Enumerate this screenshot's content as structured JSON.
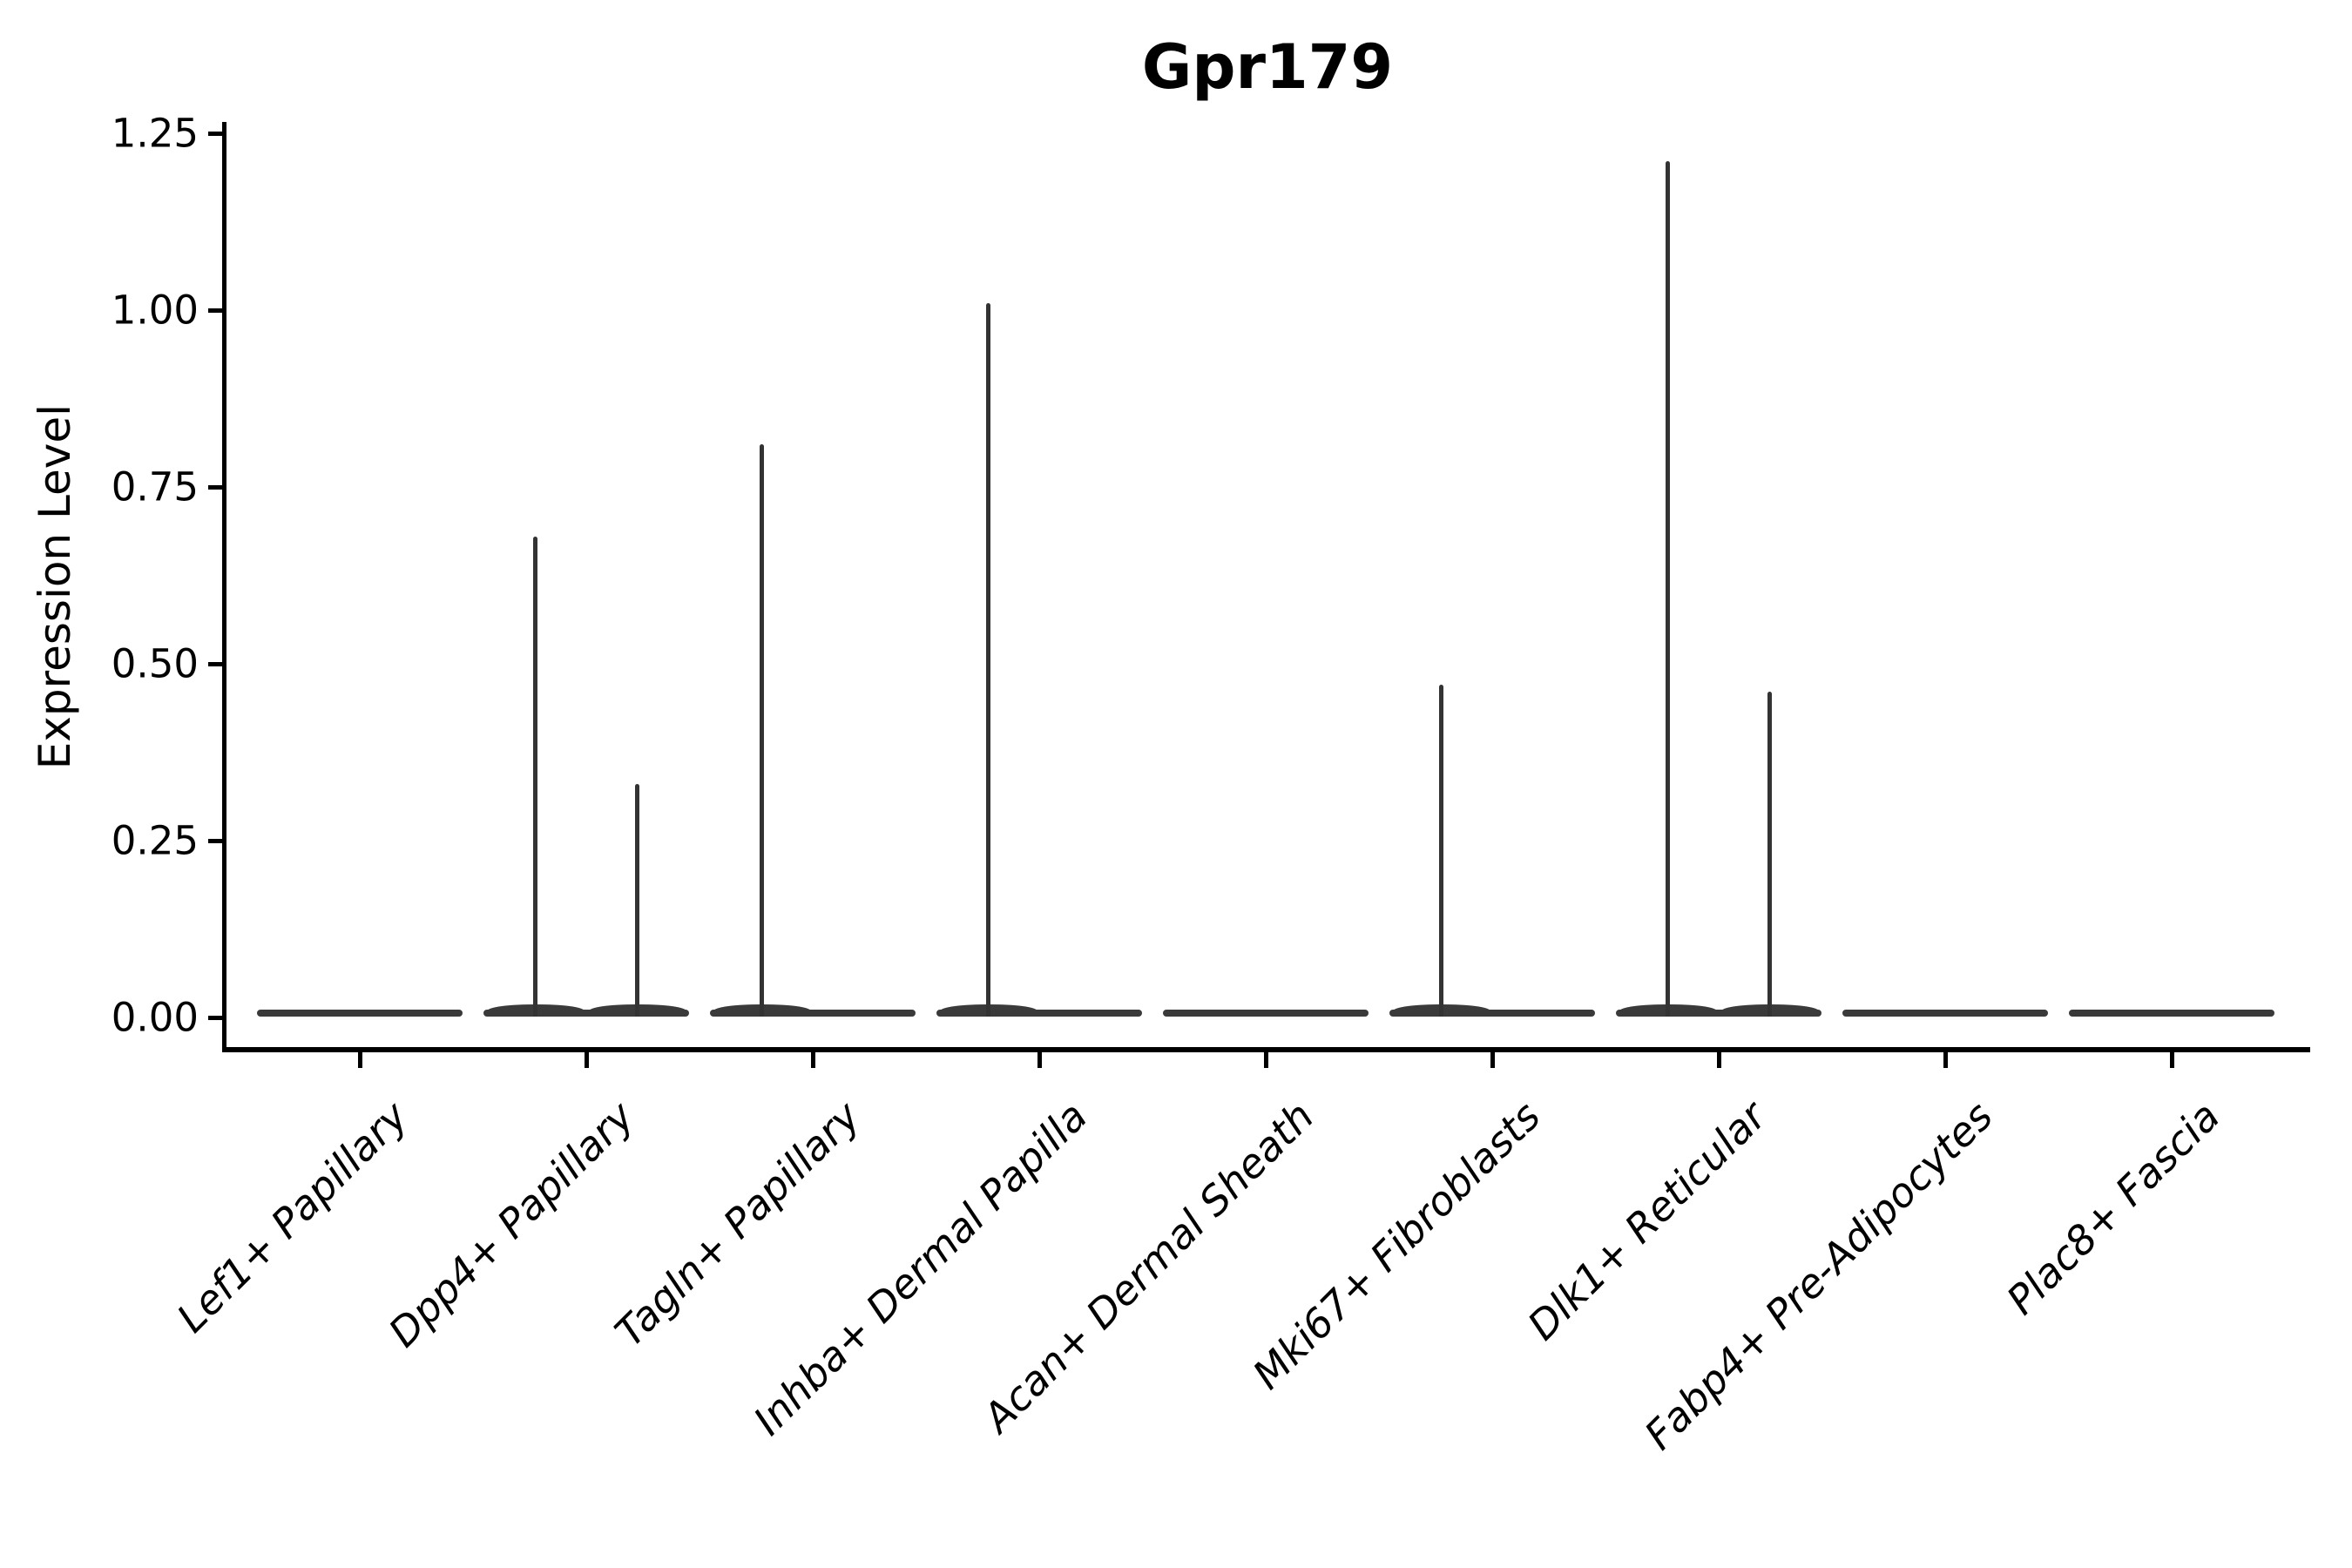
{
  "figure": {
    "title": "Gpr179",
    "background": "#ffffff"
  },
  "chart_data": {
    "type": "violin",
    "title": "Gpr179",
    "xlabel": "",
    "ylabel": "Expression Level",
    "ylim": [
      0,
      1.28
    ],
    "yticks": [
      0.0,
      0.25,
      0.5,
      0.75,
      1.0,
      1.25
    ],
    "ytick_labels": [
      "0.00",
      "0.25",
      "0.50",
      "0.75",
      "1.00",
      "1.25"
    ],
    "grid": false,
    "legend": "none",
    "categories": [
      "Lef1+ Papillary",
      "Dpp4+ Papillary",
      "Tagln+ Papillary",
      "Inhba+ Dermal Papilla",
      "Acan+ Dermal Sheath",
      "Mki67+ Fibroblasts",
      "Dlk1+ Reticular",
      "Fabp4+ Pre-Adipocytes",
      "Plac8+ Fascia"
    ],
    "violins": [
      {
        "category": "Lef1+ Papillary",
        "baseline_value": 0,
        "spikes": []
      },
      {
        "category": "Dpp4+ Papillary",
        "baseline_value": 0,
        "spikes": [
          {
            "offset_frac": -0.225,
            "max": 0.68
          },
          {
            "offset_frac": 0.225,
            "max": 0.33
          }
        ]
      },
      {
        "category": "Tagln+ Papillary",
        "baseline_value": 0,
        "spikes": [
          {
            "offset_frac": -0.225,
            "max": 0.81
          }
        ]
      },
      {
        "category": "Inhba+ Dermal Papilla",
        "baseline_value": 0,
        "spikes": [
          {
            "offset_frac": -0.225,
            "max": 1.01
          }
        ]
      },
      {
        "category": "Acan+ Dermal Sheath",
        "baseline_value": 0,
        "spikes": []
      },
      {
        "category": "Mki67+ Fibroblasts",
        "baseline_value": 0,
        "spikes": [
          {
            "offset_frac": -0.225,
            "max": 0.47
          }
        ]
      },
      {
        "category": "Dlk1+ Reticular",
        "baseline_value": 0,
        "spikes": [
          {
            "offset_frac": -0.225,
            "max": 1.21
          },
          {
            "offset_frac": 0.225,
            "max": 0.46
          }
        ]
      },
      {
        "category": "Fabp4+ Pre-Adipocytes",
        "baseline_value": 0,
        "spikes": []
      },
      {
        "category": "Plac8+ Fascia",
        "baseline_value": 0,
        "spikes": []
      }
    ],
    "style_note": "Each category shows two adjacent sub-violins collapsed to a flat bar at expression 0; thin vertical spikes reach the maximum expression value."
  },
  "colors": {
    "violin_body": "#3a3a3a",
    "violin_spike": "#333333",
    "axis": "#000000",
    "text": "#000000",
    "background": "#ffffff"
  }
}
